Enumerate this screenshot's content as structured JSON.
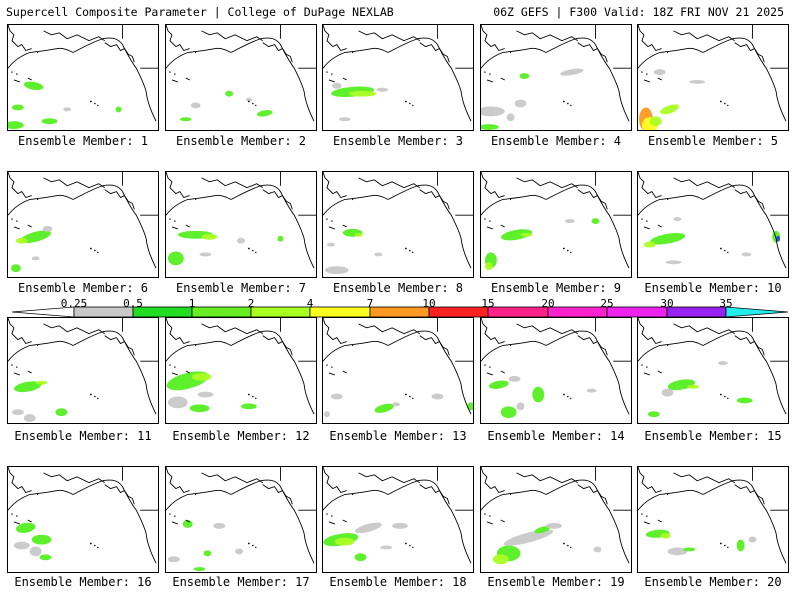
{
  "header": {
    "title": "Supercell Composite Parameter | College of DuPage NEXLAB",
    "run_info": "06Z GEFS | F300 Valid: 18Z FRI NOV 21 2025"
  },
  "colorbar": {
    "labels": [
      "0.25",
      "0.5",
      "1",
      "2",
      "4",
      "7",
      "10",
      "15",
      "20",
      "25",
      "30",
      "35"
    ],
    "colors": [
      "#c8c8c8",
      "#22dd22",
      "#66ee22",
      "#aaff22",
      "#ffff22",
      "#ff9922",
      "#ff2222",
      "#ff2288",
      "#ff22cc",
      "#ee22ee",
      "#9922ee",
      "#aa66dd",
      "#22eeee"
    ]
  },
  "panels": [
    {
      "caption": "Ensemble Member: 1"
    },
    {
      "caption": "Ensemble Member: 2"
    },
    {
      "caption": "Ensemble Member: 3"
    },
    {
      "caption": "Ensemble Member: 4"
    },
    {
      "caption": "Ensemble Member: 5"
    },
    {
      "caption": "Ensemble Member: 6"
    },
    {
      "caption": "Ensemble Member: 7"
    },
    {
      "caption": "Ensemble Member: 8"
    },
    {
      "caption": "Ensemble Member: 9"
    },
    {
      "caption": "Ensemble Member: 10"
    },
    {
      "caption": "Ensemble Member: 11"
    },
    {
      "caption": "Ensemble Member: 12"
    },
    {
      "caption": "Ensemble Member: 13"
    },
    {
      "caption": "Ensemble Member: 14"
    },
    {
      "caption": "Ensemble Member: 15"
    },
    {
      "caption": "Ensemble Member: 16"
    },
    {
      "caption": "Ensemble Member: 17"
    },
    {
      "caption": "Ensemble Member: 18"
    },
    {
      "caption": "Ensemble Member: 19"
    },
    {
      "caption": "Ensemble Member: 20"
    }
  ]
}
